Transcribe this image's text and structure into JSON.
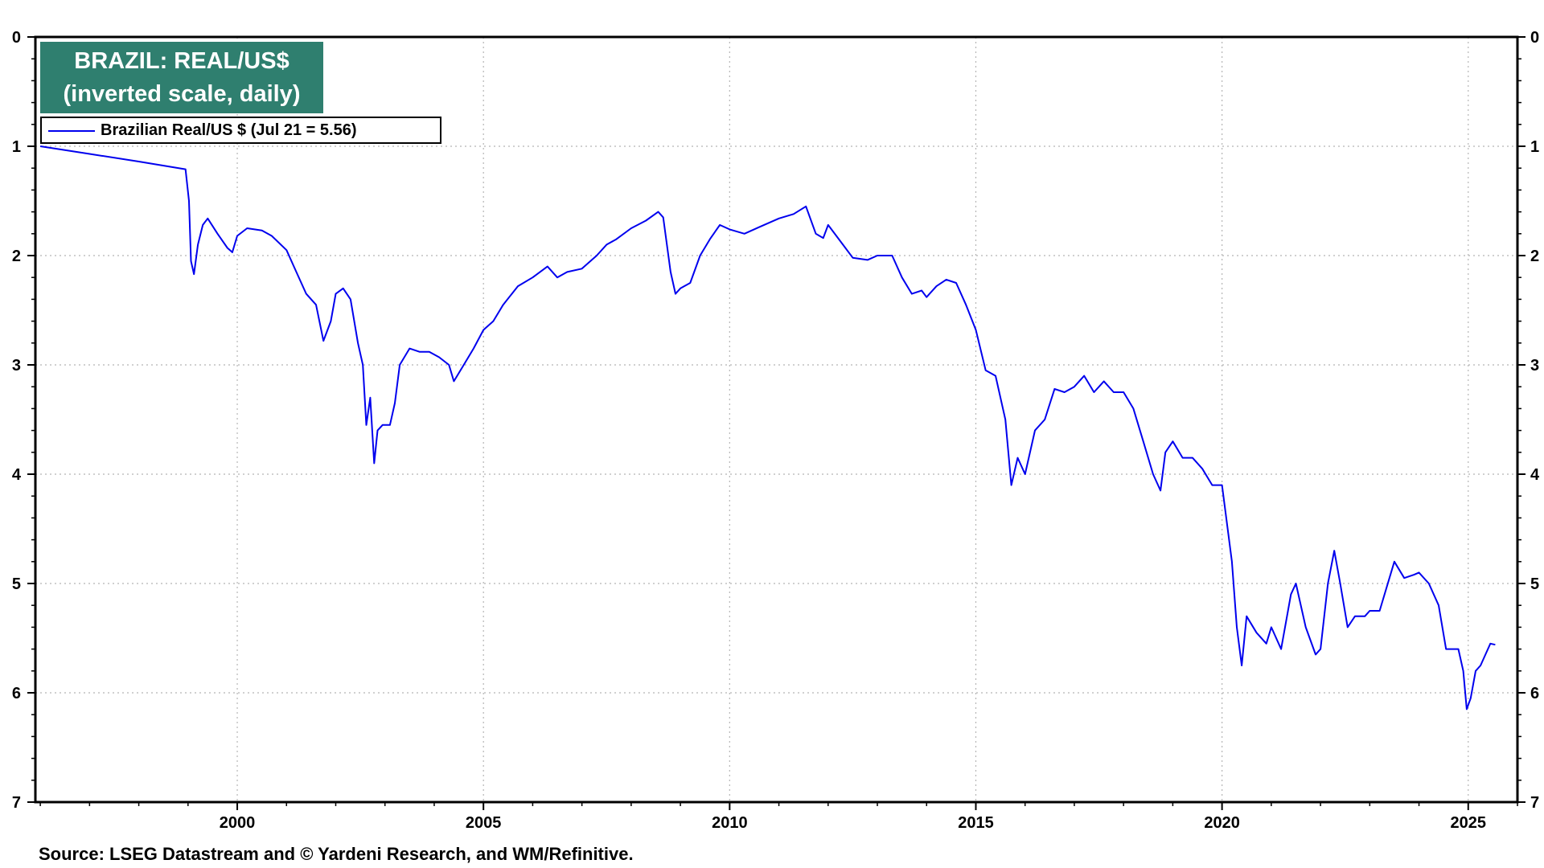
{
  "chart_data": {
    "type": "line",
    "title_lines": [
      "BRAZIL: REAL/US$",
      "(inverted scale, daily)"
    ],
    "xlabel": "",
    "ylabel": "",
    "y_inverted": true,
    "ylim": [
      0,
      7
    ],
    "y_ticks": [
      "0",
      "1",
      "2",
      "3",
      "4",
      "5",
      "6",
      "7"
    ],
    "xlim": [
      1995.9,
      2026.0
    ],
    "x_ticks": [
      "2000",
      "2005",
      "2010",
      "2015",
      "2020",
      "2025"
    ],
    "grid": true,
    "legend_position": "top-left",
    "series": [
      {
        "name": "Brazilian Real/US $ (Jul 21 = 5.56)",
        "color": "#0000ee",
        "points": [
          [
            1996.0,
            1.0
          ],
          [
            1997.0,
            1.07
          ],
          [
            1998.0,
            1.14
          ],
          [
            1998.95,
            1.21
          ],
          [
            1999.02,
            1.5
          ],
          [
            1999.06,
            2.05
          ],
          [
            1999.12,
            2.17
          ],
          [
            1999.2,
            1.9
          ],
          [
            1999.3,
            1.72
          ],
          [
            1999.4,
            1.66
          ],
          [
            1999.6,
            1.8
          ],
          [
            1999.8,
            1.93
          ],
          [
            1999.9,
            1.97
          ],
          [
            2000.0,
            1.82
          ],
          [
            2000.2,
            1.75
          ],
          [
            2000.5,
            1.77
          ],
          [
            2000.7,
            1.82
          ],
          [
            2001.0,
            1.95
          ],
          [
            2001.2,
            2.15
          ],
          [
            2001.4,
            2.35
          ],
          [
            2001.6,
            2.45
          ],
          [
            2001.75,
            2.78
          ],
          [
            2001.9,
            2.6
          ],
          [
            2002.0,
            2.35
          ],
          [
            2002.15,
            2.3
          ],
          [
            2002.3,
            2.4
          ],
          [
            2002.45,
            2.8
          ],
          [
            2002.55,
            3.0
          ],
          [
            2002.62,
            3.55
          ],
          [
            2002.7,
            3.3
          ],
          [
            2002.78,
            3.9
          ],
          [
            2002.85,
            3.6
          ],
          [
            2002.95,
            3.55
          ],
          [
            2003.1,
            3.55
          ],
          [
            2003.2,
            3.35
          ],
          [
            2003.3,
            3.0
          ],
          [
            2003.5,
            2.85
          ],
          [
            2003.7,
            2.88
          ],
          [
            2003.9,
            2.88
          ],
          [
            2004.1,
            2.93
          ],
          [
            2004.3,
            3.0
          ],
          [
            2004.4,
            3.15
          ],
          [
            2004.6,
            3.0
          ],
          [
            2004.8,
            2.85
          ],
          [
            2005.0,
            2.68
          ],
          [
            2005.2,
            2.6
          ],
          [
            2005.4,
            2.45
          ],
          [
            2005.7,
            2.28
          ],
          [
            2006.0,
            2.2
          ],
          [
            2006.3,
            2.1
          ],
          [
            2006.5,
            2.2
          ],
          [
            2006.7,
            2.15
          ],
          [
            2007.0,
            2.12
          ],
          [
            2007.3,
            2.0
          ],
          [
            2007.5,
            1.9
          ],
          [
            2007.7,
            1.85
          ],
          [
            2008.0,
            1.75
          ],
          [
            2008.3,
            1.68
          ],
          [
            2008.55,
            1.6
          ],
          [
            2008.65,
            1.65
          ],
          [
            2008.8,
            2.15
          ],
          [
            2008.9,
            2.35
          ],
          [
            2009.0,
            2.3
          ],
          [
            2009.2,
            2.25
          ],
          [
            2009.4,
            2.0
          ],
          [
            2009.6,
            1.85
          ],
          [
            2009.8,
            1.72
          ],
          [
            2010.0,
            1.76
          ],
          [
            2010.3,
            1.8
          ],
          [
            2010.6,
            1.74
          ],
          [
            2011.0,
            1.66
          ],
          [
            2011.3,
            1.62
          ],
          [
            2011.55,
            1.55
          ],
          [
            2011.75,
            1.8
          ],
          [
            2011.9,
            1.84
          ],
          [
            2012.0,
            1.72
          ],
          [
            2012.3,
            1.9
          ],
          [
            2012.5,
            2.02
          ],
          [
            2012.8,
            2.04
          ],
          [
            2013.0,
            2.0
          ],
          [
            2013.3,
            2.0
          ],
          [
            2013.5,
            2.2
          ],
          [
            2013.7,
            2.35
          ],
          [
            2013.9,
            2.32
          ],
          [
            2014.0,
            2.38
          ],
          [
            2014.2,
            2.28
          ],
          [
            2014.4,
            2.22
          ],
          [
            2014.6,
            2.25
          ],
          [
            2014.8,
            2.45
          ],
          [
            2015.0,
            2.68
          ],
          [
            2015.2,
            3.05
          ],
          [
            2015.4,
            3.1
          ],
          [
            2015.6,
            3.5
          ],
          [
            2015.72,
            4.1
          ],
          [
            2015.85,
            3.85
          ],
          [
            2016.0,
            4.0
          ],
          [
            2016.2,
            3.6
          ],
          [
            2016.4,
            3.5
          ],
          [
            2016.6,
            3.22
          ],
          [
            2016.8,
            3.25
          ],
          [
            2017.0,
            3.2
          ],
          [
            2017.2,
            3.1
          ],
          [
            2017.4,
            3.25
          ],
          [
            2017.6,
            3.15
          ],
          [
            2017.8,
            3.25
          ],
          [
            2018.0,
            3.25
          ],
          [
            2018.2,
            3.4
          ],
          [
            2018.4,
            3.7
          ],
          [
            2018.6,
            4.0
          ],
          [
            2018.75,
            4.15
          ],
          [
            2018.85,
            3.8
          ],
          [
            2019.0,
            3.7
          ],
          [
            2019.2,
            3.85
          ],
          [
            2019.4,
            3.85
          ],
          [
            2019.6,
            3.95
          ],
          [
            2019.8,
            4.1
          ],
          [
            2020.0,
            4.1
          ],
          [
            2020.2,
            4.8
          ],
          [
            2020.3,
            5.4
          ],
          [
            2020.4,
            5.75
          ],
          [
            2020.5,
            5.3
          ],
          [
            2020.7,
            5.45
          ],
          [
            2020.9,
            5.55
          ],
          [
            2021.0,
            5.4
          ],
          [
            2021.2,
            5.6
          ],
          [
            2021.4,
            5.1
          ],
          [
            2021.5,
            5.0
          ],
          [
            2021.7,
            5.4
          ],
          [
            2021.9,
            5.65
          ],
          [
            2022.0,
            5.6
          ],
          [
            2022.15,
            5.0
          ],
          [
            2022.28,
            4.7
          ],
          [
            2022.4,
            5.0
          ],
          [
            2022.55,
            5.4
          ],
          [
            2022.7,
            5.3
          ],
          [
            2022.9,
            5.3
          ],
          [
            2023.0,
            5.25
          ],
          [
            2023.2,
            5.25
          ],
          [
            2023.4,
            4.95
          ],
          [
            2023.5,
            4.8
          ],
          [
            2023.7,
            4.95
          ],
          [
            2023.9,
            4.92
          ],
          [
            2024.0,
            4.9
          ],
          [
            2024.2,
            5.0
          ],
          [
            2024.4,
            5.2
          ],
          [
            2024.55,
            5.6
          ],
          [
            2024.7,
            5.6
          ],
          [
            2024.8,
            5.6
          ],
          [
            2024.9,
            5.8
          ],
          [
            2024.97,
            6.15
          ],
          [
            2025.05,
            6.05
          ],
          [
            2025.15,
            5.8
          ],
          [
            2025.25,
            5.75
          ],
          [
            2025.35,
            5.65
          ],
          [
            2025.45,
            5.55
          ],
          [
            2025.55,
            5.56
          ]
        ]
      }
    ]
  },
  "source": "Source: LSEG Datastream and © Yardeni Research, and WM/Refinitive."
}
